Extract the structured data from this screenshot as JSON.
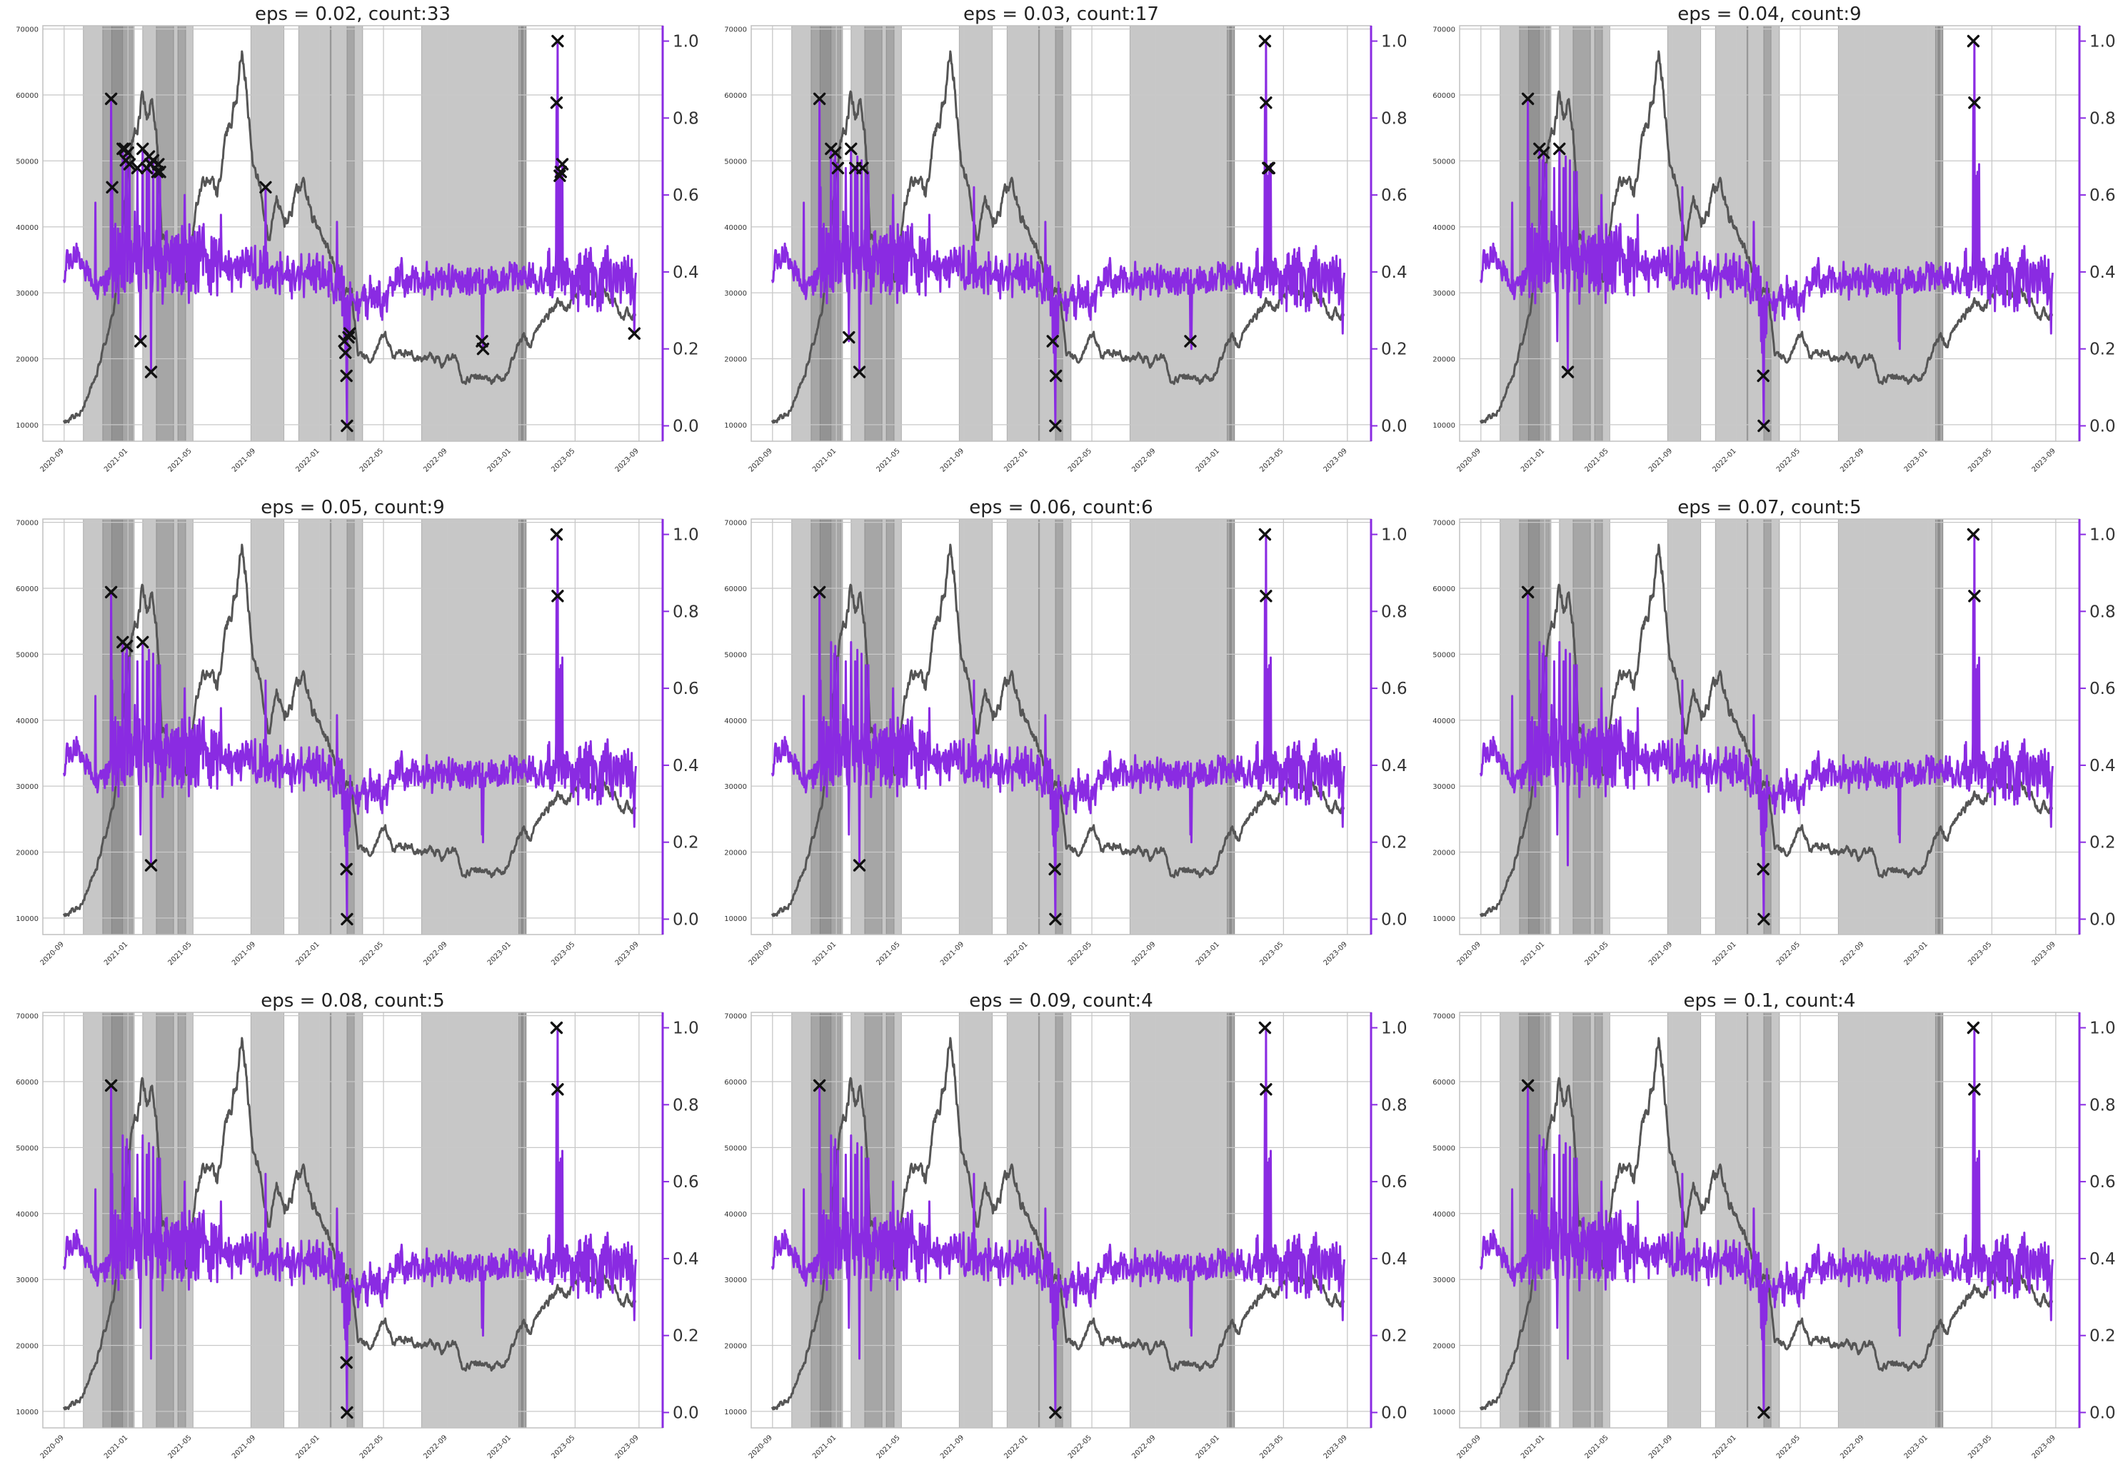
{
  "figure": {
    "layout": "3x3 grid of dual-axis line charts"
  },
  "colors": {
    "price_line": "#555555",
    "score_line": "#8a2be2",
    "right_axis": "#8a2be2",
    "shade": "#7a7a7a",
    "anomaly_marker": "#111111",
    "grid": "#c8c8c8",
    "axes_frame": "#c0c0c0"
  },
  "shared": {
    "x_tick_labels": [
      "2020-09",
      "2021-01",
      "2021-05",
      "2021-09",
      "2022-01",
      "2022-05",
      "2022-09",
      "2023-01",
      "2023-05",
      "2023-09"
    ],
    "left_tick_labels": [
      "10000",
      "20000",
      "30000",
      "40000",
      "50000",
      "60000",
      "70000"
    ],
    "right_tick_labels": [
      "0.0",
      "0.2",
      "0.4",
      "0.6",
      "0.8",
      "1.0"
    ],
    "left_ylim": [
      7500,
      70500
    ],
    "right_ylim": [
      -0.04,
      1.04
    ],
    "x_range_days": [
      -40,
      1140
    ],
    "shaded_periods_days": [
      [
        37,
        131
      ],
      [
        74,
        112
      ],
      [
        91,
        134
      ],
      [
        150,
        246
      ],
      [
        176,
        209
      ],
      [
        217,
        232
      ],
      [
        356,
        419
      ],
      [
        447,
        509
      ],
      [
        507,
        553
      ],
      [
        539,
        569
      ],
      [
        681,
        880
      ],
      [
        866,
        880
      ],
      [
        871,
        874
      ]
    ],
    "legend": "none",
    "grid": true
  },
  "chart_data": [
    {
      "type": "line",
      "title": "eps = 0.02, count:33",
      "series": [
        {
          "axis": "left",
          "kind": "price"
        },
        {
          "axis": "right",
          "kind": "anomaly_score"
        }
      ],
      "anomalies": [
        [
          90,
          0.85
        ],
        [
          92,
          0.62
        ],
        [
          112,
          0.72
        ],
        [
          116,
          0.72
        ],
        [
          118,
          0.69
        ],
        [
          122,
          0.71
        ],
        [
          125,
          0.68
        ],
        [
          140,
          0.67
        ],
        [
          146,
          0.22
        ],
        [
          150,
          0.72
        ],
        [
          158,
          0.67
        ],
        [
          162,
          0.7
        ],
        [
          165,
          0.68
        ],
        [
          166,
          0.14
        ],
        [
          170,
          0.69
        ],
        [
          178,
          0.66
        ],
        [
          180,
          0.68
        ],
        [
          183,
          0.66
        ],
        [
          384,
          0.62
        ],
        [
          534,
          0.22
        ],
        [
          536,
          0.19
        ],
        [
          538,
          0.13
        ],
        [
          539,
          0.0
        ],
        [
          542,
          0.23
        ],
        [
          544,
          0.24
        ],
        [
          796,
          0.22
        ],
        [
          798,
          0.2
        ],
        [
          938,
          0.84
        ],
        [
          940,
          1.0
        ],
        [
          944,
          0.65
        ],
        [
          946,
          0.66
        ],
        [
          949,
          0.68
        ],
        [
          1086,
          0.24
        ]
      ]
    },
    {
      "type": "line",
      "title": "eps = 0.03, count:17",
      "series": [
        {
          "axis": "left",
          "kind": "price"
        },
        {
          "axis": "right",
          "kind": "anomaly_score"
        }
      ],
      "anomalies": [
        [
          90,
          0.85
        ],
        [
          112,
          0.72
        ],
        [
          120,
          0.71
        ],
        [
          125,
          0.67
        ],
        [
          146,
          0.23
        ],
        [
          150,
          0.72
        ],
        [
          158,
          0.67
        ],
        [
          166,
          0.14
        ],
        [
          172,
          0.67
        ],
        [
          534,
          0.22
        ],
        [
          539,
          0.0
        ],
        [
          540,
          0.13
        ],
        [
          796,
          0.22
        ],
        [
          938,
          1.0
        ],
        [
          940,
          0.84
        ],
        [
          944,
          0.67
        ],
        [
          946,
          0.67
        ]
      ]
    },
    {
      "type": "line",
      "title": "eps = 0.04, count:9",
      "series": [
        {
          "axis": "left",
          "kind": "price"
        },
        {
          "axis": "right",
          "kind": "anomaly_score"
        }
      ],
      "anomalies": [
        [
          90,
          0.85
        ],
        [
          112,
          0.72
        ],
        [
          120,
          0.71
        ],
        [
          150,
          0.72
        ],
        [
          166,
          0.14
        ],
        [
          538,
          0.13
        ],
        [
          539,
          0.0
        ],
        [
          938,
          1.0
        ],
        [
          940,
          0.84
        ]
      ]
    },
    {
      "type": "line",
      "title": "eps = 0.05, count:9",
      "series": [
        {
          "axis": "left",
          "kind": "price"
        },
        {
          "axis": "right",
          "kind": "anomaly_score"
        }
      ],
      "anomalies": [
        [
          90,
          0.85
        ],
        [
          112,
          0.72
        ],
        [
          120,
          0.71
        ],
        [
          150,
          0.72
        ],
        [
          166,
          0.14
        ],
        [
          538,
          0.13
        ],
        [
          539,
          0.0
        ],
        [
          938,
          1.0
        ],
        [
          940,
          0.84
        ]
      ]
    },
    {
      "type": "line",
      "title": "eps = 0.06, count:6",
      "series": [
        {
          "axis": "left",
          "kind": "price"
        },
        {
          "axis": "right",
          "kind": "anomaly_score"
        }
      ],
      "anomalies": [
        [
          90,
          0.85
        ],
        [
          166,
          0.14
        ],
        [
          538,
          0.13
        ],
        [
          539,
          0.0
        ],
        [
          938,
          1.0
        ],
        [
          940,
          0.84
        ]
      ]
    },
    {
      "type": "line",
      "title": "eps = 0.07, count:5",
      "series": [
        {
          "axis": "left",
          "kind": "price"
        },
        {
          "axis": "right",
          "kind": "anomaly_score"
        }
      ],
      "anomalies": [
        [
          90,
          0.85
        ],
        [
          538,
          0.13
        ],
        [
          539,
          0.0
        ],
        [
          938,
          1.0
        ],
        [
          940,
          0.84
        ]
      ]
    },
    {
      "type": "line",
      "title": "eps = 0.08, count:5",
      "series": [
        {
          "axis": "left",
          "kind": "price"
        },
        {
          "axis": "right",
          "kind": "anomaly_score"
        }
      ],
      "anomalies": [
        [
          90,
          0.85
        ],
        [
          538,
          0.13
        ],
        [
          539,
          0.0
        ],
        [
          938,
          1.0
        ],
        [
          940,
          0.84
        ]
      ]
    },
    {
      "type": "line",
      "title": "eps = 0.09, count:4",
      "series": [
        {
          "axis": "left",
          "kind": "price"
        },
        {
          "axis": "right",
          "kind": "anomaly_score"
        }
      ],
      "anomalies": [
        [
          90,
          0.85
        ],
        [
          539,
          0.0
        ],
        [
          938,
          1.0
        ],
        [
          940,
          0.84
        ]
      ]
    },
    {
      "type": "line",
      "title": "eps = 0.1, count:4",
      "series": [
        {
          "axis": "left",
          "kind": "price"
        },
        {
          "axis": "right",
          "kind": "anomaly_score"
        }
      ],
      "anomalies": [
        [
          90,
          0.85
        ],
        [
          539,
          0.0
        ],
        [
          938,
          1.0
        ],
        [
          940,
          0.84
        ]
      ]
    }
  ]
}
